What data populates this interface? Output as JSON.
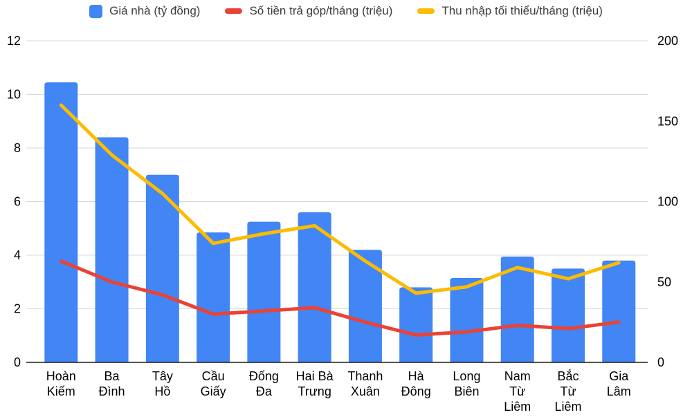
{
  "legend": {
    "items": [
      {
        "label": "Giá nhà (tỷ đồng)",
        "color": "#4285F4",
        "shape": "square"
      },
      {
        "label": "Số tiền trả góp/tháng (triệu)",
        "color": "#EA4335",
        "shape": "dash"
      },
      {
        "label": "Thu nhập tối thiểu/tháng (triệu)",
        "color": "#FBBC04",
        "shape": "dash"
      }
    ]
  },
  "colors": {
    "bar": "#4285F4",
    "installment_line": "#EA4335",
    "income_line": "#FBBC04",
    "gridline": "#d9d9d9",
    "axis_line": "#1a1a1a",
    "text": "#000000"
  },
  "chart_data": {
    "type": "combo",
    "subtypes": [
      "bar",
      "line",
      "line"
    ],
    "categories": [
      "Hoàn Kiếm",
      "Ba Đình",
      "Tây Hồ",
      "Cầu Giấy",
      "Đống Đa",
      "Hai Bà Trưng",
      "Thanh Xuân",
      "Hà Đông",
      "Long Biên",
      "Nam Từ Liêm",
      "Bắc Từ Liêm",
      "Gia Lâm"
    ],
    "category_label_lines": [
      [
        "Hoàn",
        "Kiếm"
      ],
      [
        "Ba",
        "Đình"
      ],
      [
        "Tây",
        "Hồ"
      ],
      [
        "Cầu",
        "Giấy"
      ],
      [
        "Đống",
        "Đa"
      ],
      [
        "Hai Bà",
        "Trưng"
      ],
      [
        "Thanh",
        "Xuân"
      ],
      [
        "Hà",
        "Đông"
      ],
      [
        "Long",
        "Biên"
      ],
      [
        "Nam",
        "Từ",
        "Liêm"
      ],
      [
        "Bắc",
        "Từ",
        "Liêm"
      ],
      [
        "Gia",
        "Lâm"
      ]
    ],
    "series": [
      {
        "name": "Giá nhà (tỷ đồng)",
        "type": "bar",
        "axis": "left",
        "color": "#4285F4",
        "values": [
          10.45,
          8.4,
          7.0,
          4.85,
          5.25,
          5.6,
          4.2,
          2.8,
          3.15,
          3.95,
          3.5,
          3.8
        ]
      },
      {
        "name": "Số tiền trả góp/tháng (triệu)",
        "type": "line",
        "axis": "right",
        "color": "#EA4335",
        "values": [
          63,
          50,
          42,
          30,
          32,
          34,
          25,
          17,
          19,
          23,
          21,
          25
        ]
      },
      {
        "name": "Thu nhập tối thiểu/tháng (triệu)",
        "type": "line",
        "axis": "right",
        "color": "#FBBC04",
        "values": [
          160,
          129,
          105,
          74,
          80,
          85,
          63,
          43,
          47,
          59,
          52,
          62
        ]
      }
    ],
    "left_axis": {
      "min": 0,
      "max": 12,
      "ticks": [
        0,
        2,
        4,
        6,
        8,
        10,
        12
      ]
    },
    "right_axis": {
      "min": 0,
      "max": 200,
      "ticks": [
        0,
        50,
        100,
        150,
        200
      ]
    },
    "grid": true,
    "legend_position": "top",
    "title": "",
    "xlabel": "",
    "ylabel": ""
  }
}
